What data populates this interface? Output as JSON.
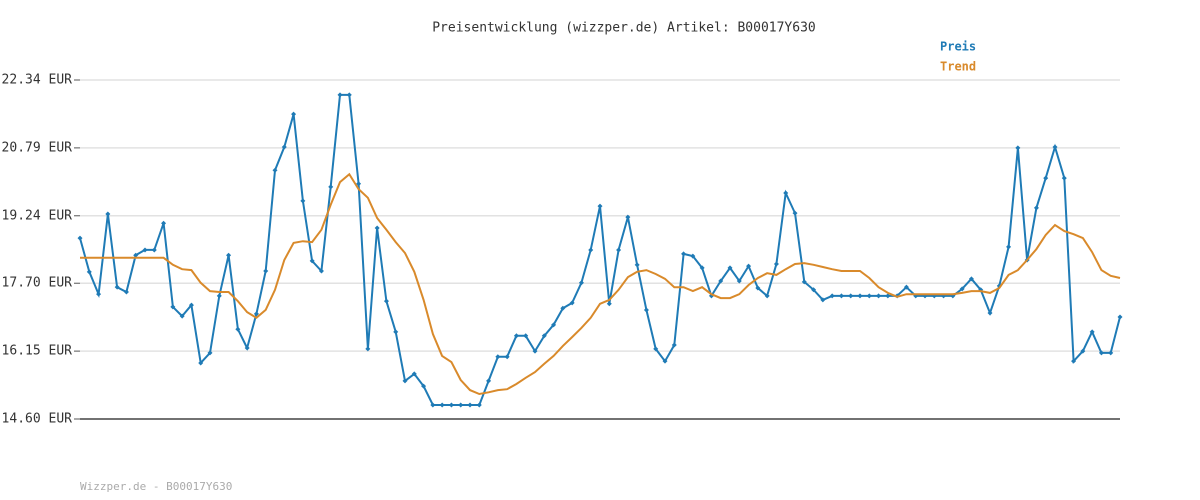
{
  "chart_data": {
    "type": "line",
    "title": "Preisentwicklung (wizzper.de) Artikel: B00017Y630",
    "ylim": [
      14.6,
      22.34
    ],
    "yticks": [
      {
        "value": 14.6,
        "label": "14.60 EUR"
      },
      {
        "value": 16.15,
        "label": "16.15 EUR"
      },
      {
        "value": 17.7,
        "label": "17.70 EUR"
      },
      {
        "value": 19.24,
        "label": "19.24 EUR"
      },
      {
        "value": 20.79,
        "label": "20.79 EUR"
      },
      {
        "value": 22.34,
        "label": "22.34 EUR"
      }
    ],
    "grid": true,
    "legend": "top-right",
    "series": [
      {
        "name": "Preis",
        "color": "#1f7bb6",
        "markers": true,
        "values": [
          18.73,
          17.96,
          17.45,
          19.28,
          17.61,
          17.5,
          18.34,
          18.46,
          18.46,
          19.07,
          17.16,
          16.95,
          17.2,
          15.88,
          16.11,
          17.41,
          18.34,
          16.65,
          16.22,
          17.0,
          17.98,
          20.28,
          20.81,
          21.56,
          19.58,
          18.21,
          17.98,
          19.9,
          22.0,
          22.0,
          19.97,
          16.2,
          18.96,
          17.29,
          16.59,
          15.47,
          15.63,
          15.35,
          14.92,
          14.92,
          14.92,
          14.92,
          14.92,
          14.92,
          15.47,
          16.02,
          16.02,
          16.5,
          16.5,
          16.15,
          16.5,
          16.75,
          17.13,
          17.25,
          17.71,
          18.46,
          19.46,
          17.23,
          18.46,
          19.21,
          18.12,
          17.09,
          16.2,
          15.92,
          16.29,
          18.37,
          18.32,
          18.05,
          17.41,
          17.75,
          18.05,
          17.75,
          18.09,
          17.59,
          17.41,
          18.14,
          19.76,
          19.3,
          17.73,
          17.55,
          17.32,
          17.41,
          17.41,
          17.41,
          17.41,
          17.41,
          17.41,
          17.41,
          17.41,
          17.61,
          17.41,
          17.41,
          17.41,
          17.41,
          17.41,
          17.57,
          17.8,
          17.55,
          17.02,
          17.64,
          18.53,
          20.79,
          18.23,
          19.42,
          20.1,
          20.81,
          20.1,
          15.92,
          16.15,
          16.59,
          16.11,
          16.11,
          16.93
        ]
      },
      {
        "name": "Trend",
        "color": "#d98a2b",
        "markers": false,
        "values": [
          18.28,
          18.28,
          18.28,
          18.28,
          18.28,
          18.28,
          18.28,
          18.28,
          18.28,
          18.28,
          18.12,
          18.02,
          18.0,
          17.71,
          17.52,
          17.5,
          17.5,
          17.29,
          17.04,
          16.91,
          17.09,
          17.55,
          18.23,
          18.62,
          18.66,
          18.64,
          18.92,
          19.49,
          20.01,
          20.19,
          19.85,
          19.65,
          19.19,
          18.92,
          18.64,
          18.39,
          17.96,
          17.32,
          16.54,
          16.04,
          15.9,
          15.49,
          15.26,
          15.17,
          15.21,
          15.26,
          15.28,
          15.4,
          15.54,
          15.67,
          15.86,
          16.04,
          16.27,
          16.47,
          16.68,
          16.91,
          17.23,
          17.32,
          17.55,
          17.84,
          17.96,
          18.0,
          17.91,
          17.8,
          17.61,
          17.61,
          17.52,
          17.61,
          17.45,
          17.36,
          17.36,
          17.45,
          17.66,
          17.82,
          17.93,
          17.89,
          18.02,
          18.14,
          18.16,
          18.12,
          18.07,
          18.02,
          17.98,
          17.98,
          17.98,
          17.82,
          17.61,
          17.48,
          17.39,
          17.45,
          17.45,
          17.45,
          17.45,
          17.45,
          17.45,
          17.48,
          17.52,
          17.52,
          17.48,
          17.59,
          17.89,
          18.0,
          18.23,
          18.48,
          18.8,
          19.03,
          18.89,
          18.82,
          18.73,
          18.41,
          18.0,
          17.87,
          17.82
        ]
      }
    ]
  },
  "footer": "Wizzper.de - B00017Y630"
}
